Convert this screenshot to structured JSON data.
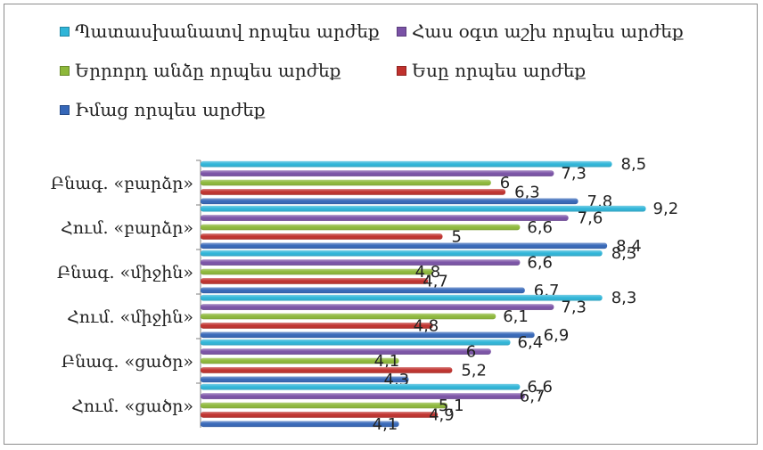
{
  "chart_data": {
    "type": "bar",
    "orientation": "horizontal",
    "categories": [
      "Բնագ. «բարձր»",
      "Հում. «բարձր»",
      "Բնագ. «միջին»",
      "Հում. «միջին»",
      "Բնագ. «ցածր»",
      "Հում. «ցածր»"
    ],
    "series": [
      {
        "name": "Պատասխանատվ որպես արժեք",
        "color": "#2fb5d8",
        "values": [
          8.5,
          9.2,
          8.3,
          8.3,
          6.4,
          6.6
        ]
      },
      {
        "name": "Հաս օգտ աշխ որպես արժեք",
        "color": "#7a52a6",
        "values": [
          7.3,
          7.6,
          6.6,
          7.3,
          6,
          6.7
        ]
      },
      {
        "name": "Երրորդ անձը որպես արժեք",
        "color": "#8db83a",
        "values": [
          6,
          6.6,
          4.8,
          6.1,
          4.1,
          5.1
        ]
      },
      {
        "name": "Եսը որպես արժեք",
        "color": "#c0312d",
        "values": [
          6.3,
          5,
          4.7,
          4.8,
          5.2,
          4.9
        ]
      },
      {
        "name": "Իմաց որպես արժեք",
        "color": "#3667b8",
        "values": [
          7.8,
          8.4,
          6.7,
          6.9,
          4.3,
          4.1
        ]
      }
    ],
    "xlim": [
      0,
      10
    ],
    "legend_position": "top",
    "grid": false
  }
}
